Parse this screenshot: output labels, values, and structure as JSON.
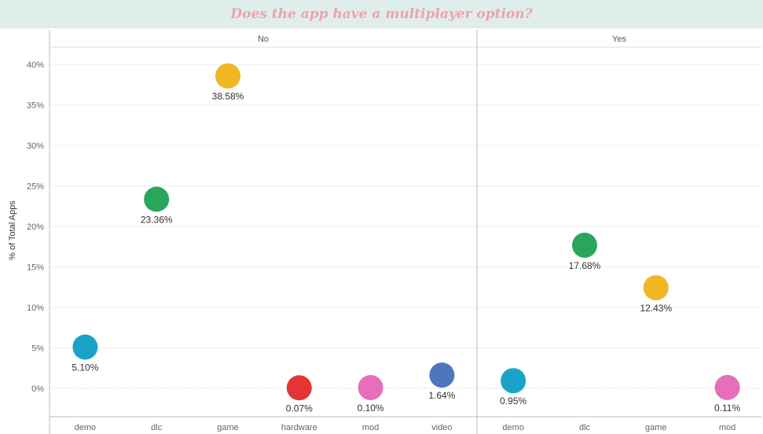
{
  "title": "Does the app have a multiplayer option?",
  "chart_data": {
    "type": "scatter",
    "title": "Does the app have a multiplayer option?",
    "ylabel": "% of Total Apps",
    "xlabel": "",
    "ylim": [
      -3.5,
      42
    ],
    "yticks": [
      0,
      5,
      10,
      15,
      20,
      25,
      30,
      35,
      40
    ],
    "ytick_labels": [
      "0%",
      "5%",
      "10%",
      "15%",
      "20%",
      "25%",
      "30%",
      "35%",
      "40%"
    ],
    "colors": {
      "demo": "#1aa3c9",
      "dlc": "#2aa65c",
      "game": "#f0b723",
      "hardware": "#e33535",
      "mod": "#e56fba",
      "video": "#4c77bd"
    },
    "panels": [
      {
        "name": "No",
        "categories": [
          "demo",
          "dlc",
          "game",
          "hardware",
          "mod",
          "video"
        ],
        "values": [
          5.1,
          23.36,
          38.58,
          0.07,
          0.1,
          1.64
        ],
        "labels": [
          "5.10%",
          "23.36%",
          "38.58%",
          "0.07%",
          "0.10%",
          "1.64%"
        ]
      },
      {
        "name": "Yes",
        "categories": [
          "demo",
          "dlc",
          "game",
          "mod"
        ],
        "values": [
          0.95,
          17.68,
          12.43,
          0.11
        ],
        "labels": [
          "0.95%",
          "17.68%",
          "12.43%",
          "0.11%"
        ]
      }
    ]
  }
}
